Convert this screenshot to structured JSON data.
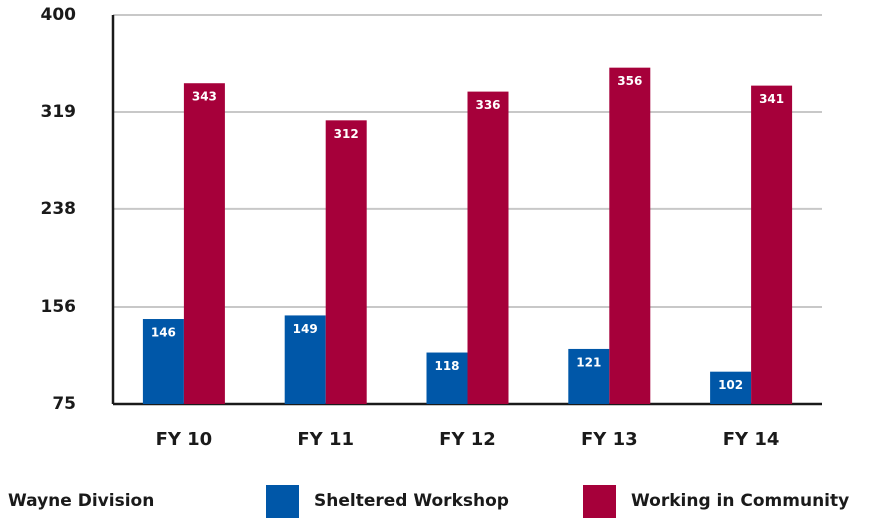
{
  "chart_data": {
    "type": "bar",
    "categories": [
      "FY 10",
      "FY 11",
      "FY 12",
      "FY 13",
      "FY 14"
    ],
    "series": [
      {
        "name": "Sheltered Workshop",
        "color": "#0057a8",
        "values": [
          146,
          149,
          118,
          121,
          102
        ]
      },
      {
        "name": "Working in Community",
        "color": "#a6003a",
        "values": [
          343,
          312,
          336,
          356,
          341
        ]
      }
    ],
    "legend_title": "Wayne Division",
    "ylim": [
      75,
      400
    ],
    "yticks": [
      75,
      156,
      238,
      319,
      400
    ],
    "grid": true,
    "legend": "bottom"
  }
}
